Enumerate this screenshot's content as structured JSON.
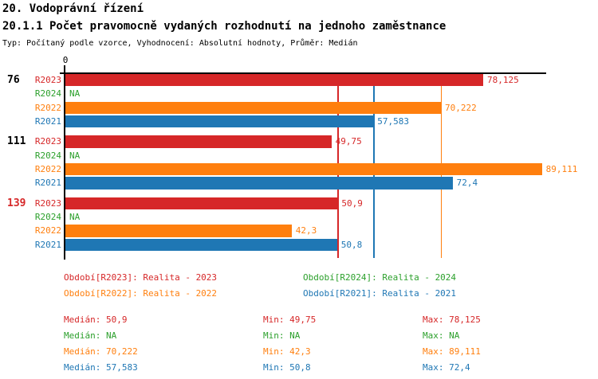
{
  "page": {
    "title": "20. Vodoprávní řízení",
    "subtitle": "20.1.1 Počet pravomocně vydaných rozhodnutí na jednoho zaměstnance",
    "meta": "Typ: Počítaný podle vzorce, Vyhodnocení: Absolutní hodnoty, Průměr: Medián"
  },
  "chart_data": {
    "type": "bar",
    "orientation": "horizontal",
    "title": "20.1.1 Počet pravomocně vydaných rozhodnutí na jednoho zaměstnance",
    "xlim": [
      0,
      90
    ],
    "axis_origin_label": "0",
    "axis_color": "#000000",
    "grid": false,
    "series": [
      {
        "id": "R2023",
        "name": "Realita - 2023",
        "color": "#d62728"
      },
      {
        "id": "R2024",
        "name": "Realita - 2024",
        "color": "#2ca02c"
      },
      {
        "id": "R2022",
        "name": "Realita - 2022",
        "color": "#ff7f0e"
      },
      {
        "id": "R2021",
        "name": "Realita - 2021",
        "color": "#1f77b4"
      }
    ],
    "groups": [
      {
        "label": "76",
        "label_color": "#000000",
        "bars": [
          {
            "series": "R2023",
            "value": 78.125,
            "value_label": "78,125"
          },
          {
            "series": "R2024",
            "value": null,
            "value_label": "NA"
          },
          {
            "series": "R2022",
            "value": 70.222,
            "value_label": "70,222"
          },
          {
            "series": "R2021",
            "value": 57.583,
            "value_label": "57,583"
          }
        ]
      },
      {
        "label": "111",
        "label_color": "#000000",
        "bars": [
          {
            "series": "R2023",
            "value": 49.75,
            "value_label": "49,75"
          },
          {
            "series": "R2024",
            "value": null,
            "value_label": "NA"
          },
          {
            "series": "R2022",
            "value": 89.111,
            "value_label": "89,111"
          },
          {
            "series": "R2021",
            "value": 72.4,
            "value_label": "72,4"
          }
        ]
      },
      {
        "label": "139",
        "label_color": "#d62728",
        "bars": [
          {
            "series": "R2023",
            "value": 50.9,
            "value_label": "50,9"
          },
          {
            "series": "R2024",
            "value": null,
            "value_label": "NA"
          },
          {
            "series": "R2022",
            "value": 42.3,
            "value_label": "42,3"
          },
          {
            "series": "R2021",
            "value": 50.8,
            "value_label": "50,8"
          }
        ]
      }
    ],
    "median_lines": [
      {
        "series": "R2023",
        "value": 50.9
      },
      {
        "series": "R2021",
        "value": 57.583
      },
      {
        "series": "R2022",
        "value": 70.222
      }
    ],
    "legend": [
      {
        "series": "R2023",
        "label": "Období[R2023]: Realita - 2023"
      },
      {
        "series": "R2024",
        "label": "Období[R2024]: Realita - 2024"
      },
      {
        "series": "R2022",
        "label": "Období[R2022]: Realita - 2022"
      },
      {
        "series": "R2021",
        "label": "Období[R2021]: Realita - 2021"
      }
    ],
    "stat_labels": {
      "median": "Medián",
      "min": "Min",
      "max": "Max"
    },
    "stats": [
      {
        "series": "R2023",
        "median": "50,9",
        "min": "49,75",
        "max": "78,125"
      },
      {
        "series": "R2024",
        "median": "NA",
        "min": "NA",
        "max": "NA"
      },
      {
        "series": "R2022",
        "median": "70,222",
        "min": "42,3",
        "max": "89,111"
      },
      {
        "series": "R2021",
        "median": "57,583",
        "min": "50,8",
        "max": "72,4"
      }
    ]
  }
}
